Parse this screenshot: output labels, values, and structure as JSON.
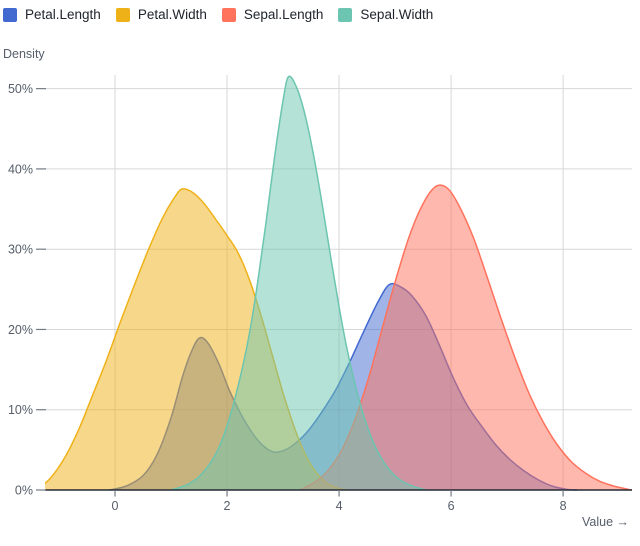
{
  "legend": {
    "items": [
      {
        "label": "Petal.Length",
        "color": "#4269d0"
      },
      {
        "label": "Petal.Width",
        "color": "#efb118"
      },
      {
        "label": "Sepal.Length",
        "color": "#ff725c"
      },
      {
        "label": "Sepal.Width",
        "color": "#6cc5b0"
      }
    ]
  },
  "chart_data": {
    "type": "area",
    "subtype": "kde-density",
    "title": "",
    "xlabel": "Value →",
    "ylabel": "Density",
    "xlim": [
      -1.25,
      9.23
    ],
    "ylim": [
      0,
      51.7
    ],
    "x_ticks": [
      0,
      2,
      4,
      6,
      8
    ],
    "y_ticks": [
      0,
      10,
      20,
      30,
      40,
      50
    ],
    "y_tick_suffix": "%",
    "grid": true,
    "legend_position": "top-left",
    "fill_opacity": 0.5,
    "stroke_width": 1.5,
    "colors": {
      "background": "#ffffff",
      "grid": "#d7d7d7",
      "axis_line": "#232833",
      "tick_mark": "#737a85",
      "tick_label": "#565e6a",
      "axis_title": "#565e6a"
    },
    "series": [
      {
        "name": "Petal.Length",
        "color": "#4269d0",
        "points": [
          [
            -0.1,
            0
          ],
          [
            0.2,
            0.5
          ],
          [
            0.5,
            1.8
          ],
          [
            0.75,
            4.4
          ],
          [
            1.0,
            9
          ],
          [
            1.2,
            14
          ],
          [
            1.35,
            17
          ],
          [
            1.5,
            18.9
          ],
          [
            1.65,
            18.4
          ],
          [
            1.85,
            15.8
          ],
          [
            2.05,
            12.3
          ],
          [
            2.3,
            8.8
          ],
          [
            2.55,
            6.2
          ],
          [
            2.8,
            4.8
          ],
          [
            3.0,
            4.9
          ],
          [
            3.2,
            5.7
          ],
          [
            3.45,
            7.4
          ],
          [
            3.7,
            9.8
          ],
          [
            3.95,
            12.6
          ],
          [
            4.2,
            16.1
          ],
          [
            4.45,
            19.9
          ],
          [
            4.7,
            23.5
          ],
          [
            4.9,
            25.6
          ],
          [
            5.1,
            25.3
          ],
          [
            5.3,
            24.2
          ],
          [
            5.55,
            21.7
          ],
          [
            5.8,
            17.9
          ],
          [
            6.05,
            13.8
          ],
          [
            6.3,
            10.4
          ],
          [
            6.55,
            7.9
          ],
          [
            6.8,
            5.6
          ],
          [
            7.05,
            3.8
          ],
          [
            7.3,
            2.4
          ],
          [
            7.55,
            1.3
          ],
          [
            7.8,
            0.5
          ],
          [
            8.05,
            0.1
          ],
          [
            8.25,
            0
          ]
        ]
      },
      {
        "name": "Petal.Width",
        "color": "#efb118",
        "points": [
          [
            -1.4,
            0
          ],
          [
            -1.15,
            1.5
          ],
          [
            -0.9,
            4
          ],
          [
            -0.65,
            7.5
          ],
          [
            -0.4,
            11.8
          ],
          [
            -0.15,
            16.2
          ],
          [
            0.1,
            21
          ],
          [
            0.35,
            25.6
          ],
          [
            0.6,
            30
          ],
          [
            0.85,
            33.9
          ],
          [
            1.05,
            36.3
          ],
          [
            1.2,
            37.5
          ],
          [
            1.4,
            37
          ],
          [
            1.6,
            35.6
          ],
          [
            1.8,
            33.7
          ],
          [
            2.0,
            31.7
          ],
          [
            2.2,
            29.5
          ],
          [
            2.4,
            26.2
          ],
          [
            2.6,
            21.9
          ],
          [
            2.8,
            17
          ],
          [
            3.0,
            12.1
          ],
          [
            3.2,
            7.8
          ],
          [
            3.4,
            4.4
          ],
          [
            3.6,
            2.1
          ],
          [
            3.8,
            0.8
          ],
          [
            4.0,
            0.2
          ],
          [
            4.15,
            0
          ]
        ]
      },
      {
        "name": "Sepal.Length",
        "color": "#ff725c",
        "points": [
          [
            3.3,
            0
          ],
          [
            3.55,
            0.9
          ],
          [
            3.8,
            2.4
          ],
          [
            4.05,
            5
          ],
          [
            4.3,
            9.1
          ],
          [
            4.55,
            14.5
          ],
          [
            4.8,
            20.9
          ],
          [
            5.05,
            27.1
          ],
          [
            5.3,
            32.5
          ],
          [
            5.55,
            36.3
          ],
          [
            5.75,
            37.9
          ],
          [
            5.95,
            37.5
          ],
          [
            6.15,
            35.3
          ],
          [
            6.4,
            31.4
          ],
          [
            6.65,
            26.4
          ],
          [
            6.9,
            21.2
          ],
          [
            7.15,
            16.3
          ],
          [
            7.4,
            11.9
          ],
          [
            7.65,
            8.4
          ],
          [
            7.9,
            5.6
          ],
          [
            8.15,
            3.5
          ],
          [
            8.4,
            2.1
          ],
          [
            8.65,
            1.1
          ],
          [
            8.9,
            0.5
          ],
          [
            9.15,
            0.1
          ],
          [
            9.23,
            0
          ]
        ]
      },
      {
        "name": "Sepal.Width",
        "color": "#6cc5b0",
        "points": [
          [
            1.0,
            0
          ],
          [
            1.3,
            0.7
          ],
          [
            1.55,
            2
          ],
          [
            1.8,
            4.5
          ],
          [
            2.0,
            8
          ],
          [
            2.2,
            13
          ],
          [
            2.4,
            19.5
          ],
          [
            2.55,
            26
          ],
          [
            2.7,
            33.5
          ],
          [
            2.85,
            41.5
          ],
          [
            3.0,
            48.5
          ],
          [
            3.1,
            51.5
          ],
          [
            3.25,
            50
          ],
          [
            3.4,
            46.5
          ],
          [
            3.55,
            41.5
          ],
          [
            3.7,
            35.5
          ],
          [
            3.85,
            29
          ],
          [
            4.0,
            22.8
          ],
          [
            4.15,
            17.3
          ],
          [
            4.35,
            11.4
          ],
          [
            4.55,
            7
          ],
          [
            4.75,
            4
          ],
          [
            4.95,
            2.1
          ],
          [
            5.15,
            1
          ],
          [
            5.35,
            0.4
          ],
          [
            5.55,
            0
          ]
        ]
      }
    ]
  }
}
